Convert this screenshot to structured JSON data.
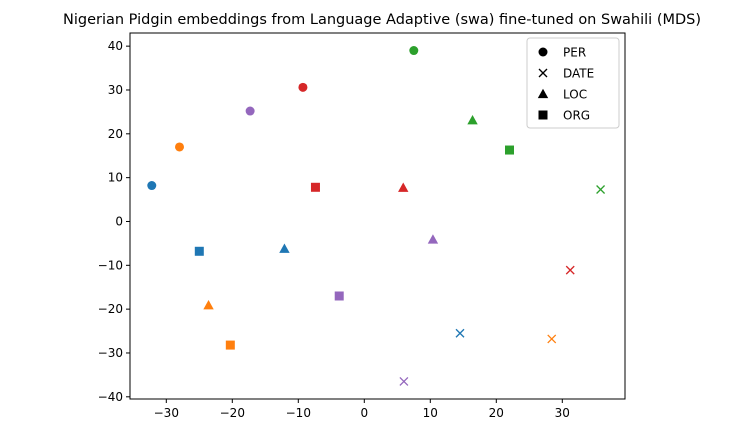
{
  "chart_data": {
    "type": "scatter",
    "title": "Nigerian Pidgin embeddings from Language Adaptive (swa) fine-tuned on Swahili (MDS)",
    "xlabel": "",
    "ylabel": "",
    "xlim": [
      -35.5,
      39.5
    ],
    "ylim": [
      -40.5,
      43
    ],
    "xticks": [
      -30,
      -20,
      -10,
      0,
      10,
      20,
      30
    ],
    "yticks": [
      -40,
      -30,
      -20,
      -10,
      0,
      10,
      20,
      30,
      40
    ],
    "grid": false,
    "legend": {
      "placement": "top-right",
      "entries": [
        {
          "label": "PER",
          "marker": "circle"
        },
        {
          "label": "DATE",
          "marker": "x"
        },
        {
          "label": "LOC",
          "marker": "triangle"
        },
        {
          "label": "ORG",
          "marker": "square"
        }
      ]
    },
    "colors": {
      "blue": "#1f77b4",
      "orange": "#ff7f0e",
      "green": "#2ca02c",
      "red": "#d62728",
      "purple": "#9467bd"
    },
    "points": [
      {
        "x": -32.2,
        "y": 8.2,
        "marker": "circle",
        "color": "blue"
      },
      {
        "x": -28,
        "y": 17,
        "marker": "circle",
        "color": "orange"
      },
      {
        "x": 7.5,
        "y": 39,
        "marker": "circle",
        "color": "green"
      },
      {
        "x": -9.3,
        "y": 30.6,
        "marker": "circle",
        "color": "red"
      },
      {
        "x": -17.3,
        "y": 25.2,
        "marker": "circle",
        "color": "purple"
      },
      {
        "x": 14.5,
        "y": -25.5,
        "marker": "x",
        "color": "blue"
      },
      {
        "x": 28.4,
        "y": -26.8,
        "marker": "x",
        "color": "orange"
      },
      {
        "x": 35.8,
        "y": 7.3,
        "marker": "x",
        "color": "green"
      },
      {
        "x": 31.2,
        "y": -11.1,
        "marker": "x",
        "color": "red"
      },
      {
        "x": 6,
        "y": -36.5,
        "marker": "x",
        "color": "purple"
      },
      {
        "x": -12.1,
        "y": -6.2,
        "marker": "triangle",
        "color": "blue"
      },
      {
        "x": -23.6,
        "y": -19.1,
        "marker": "triangle",
        "color": "orange"
      },
      {
        "x": 16.4,
        "y": 23.1,
        "marker": "triangle",
        "color": "green"
      },
      {
        "x": 5.9,
        "y": 7.7,
        "marker": "triangle",
        "color": "red"
      },
      {
        "x": 10.4,
        "y": -4.1,
        "marker": "triangle",
        "color": "purple"
      },
      {
        "x": -25,
        "y": -6.8,
        "marker": "square",
        "color": "blue"
      },
      {
        "x": -20.3,
        "y": -28.2,
        "marker": "square",
        "color": "orange"
      },
      {
        "x": 22,
        "y": 16.3,
        "marker": "square",
        "color": "green"
      },
      {
        "x": -7.4,
        "y": 7.8,
        "marker": "square",
        "color": "red"
      },
      {
        "x": -3.8,
        "y": -17,
        "marker": "square",
        "color": "purple"
      }
    ]
  }
}
